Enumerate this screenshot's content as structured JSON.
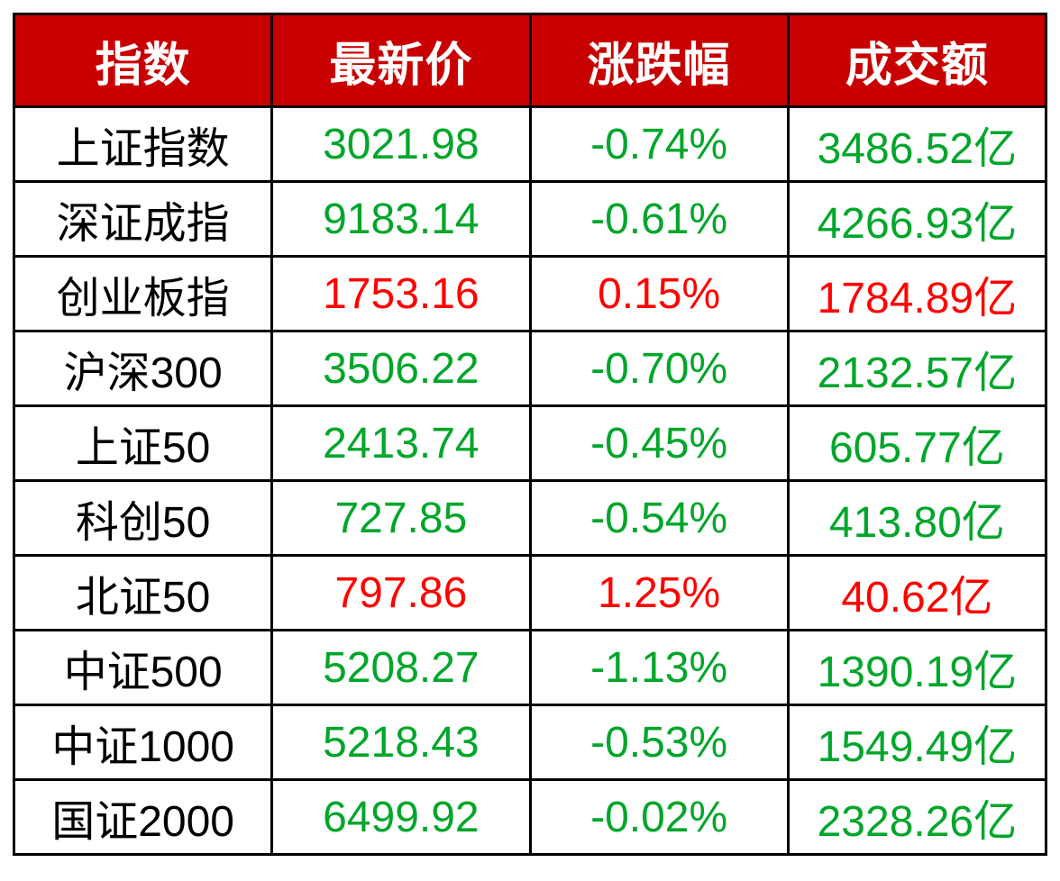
{
  "chart_data": {
    "type": "table",
    "columns": [
      {
        "key": "name",
        "label": "指数"
      },
      {
        "key": "price",
        "label": "最新价"
      },
      {
        "key": "change",
        "label": "涨跌幅"
      },
      {
        "key": "turnover",
        "label": "成交额"
      }
    ],
    "rows": [
      {
        "name": "上证指数",
        "price": "3021.98",
        "change": "-0.74%",
        "turnover": "3486.52亿",
        "trend": "down"
      },
      {
        "name": "深证成指",
        "price": "9183.14",
        "change": "-0.61%",
        "turnover": "4266.93亿",
        "trend": "down"
      },
      {
        "name": "创业板指",
        "price": "1753.16",
        "change": "0.15%",
        "turnover": "1784.89亿",
        "trend": "up"
      },
      {
        "name": "沪深300",
        "price": "3506.22",
        "change": "-0.70%",
        "turnover": "2132.57亿",
        "trend": "down"
      },
      {
        "name": "上证50",
        "price": "2413.74",
        "change": "-0.45%",
        "turnover": "605.77亿",
        "trend": "down"
      },
      {
        "name": "科创50",
        "price": "727.85",
        "change": "-0.54%",
        "turnover": "413.80亿",
        "trend": "down"
      },
      {
        "name": "北证50",
        "price": "797.86",
        "change": "1.25%",
        "turnover": "40.62亿",
        "trend": "up"
      },
      {
        "name": "中证500",
        "price": "5208.27",
        "change": "-1.13%",
        "turnover": "1390.19亿",
        "trend": "down"
      },
      {
        "name": "中证1000",
        "price": "5218.43",
        "change": "-0.53%",
        "turnover": "1549.49亿",
        "trend": "down"
      },
      {
        "name": "国证2000",
        "price": "6499.92",
        "change": "-0.02%",
        "turnover": "2328.26亿",
        "trend": "down"
      }
    ],
    "legend": {
      "up_color_meaning": "上涨(红)",
      "down_color_meaning": "下跌(绿)"
    },
    "colors": {
      "header_bg": "#c80000",
      "header_text": "#ffffff",
      "up": "#ff0000",
      "down": "#00a62b",
      "name": "#000000",
      "border": "#000000",
      "background": "#ffffff"
    }
  }
}
